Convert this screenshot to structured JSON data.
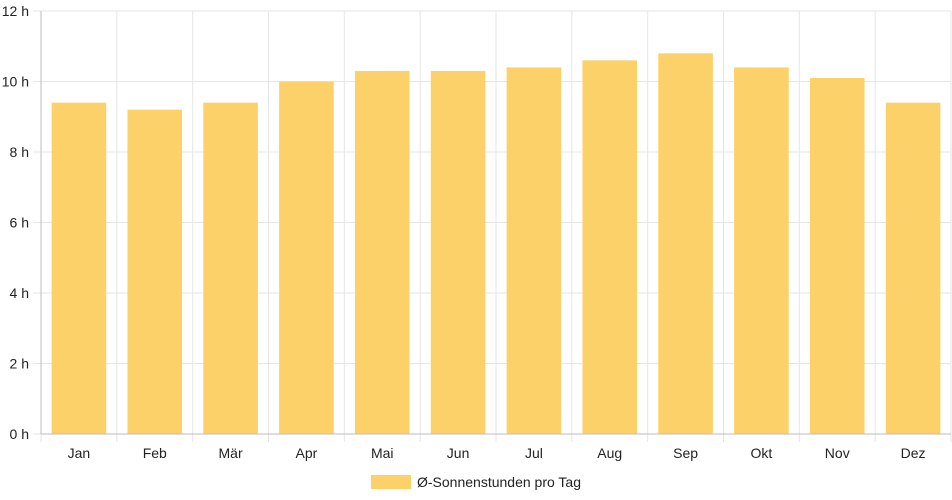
{
  "chart_data": {
    "type": "bar",
    "categories": [
      "Jan",
      "Feb",
      "Mär",
      "Apr",
      "Mai",
      "Jun",
      "Jul",
      "Aug",
      "Sep",
      "Okt",
      "Nov",
      "Dez"
    ],
    "series": [
      {
        "name": "Ø-Sonnenstunden pro Tag",
        "values": [
          9.4,
          9.2,
          9.4,
          10.0,
          10.3,
          10.3,
          10.4,
          10.6,
          10.8,
          10.4,
          10.1,
          9.4
        ]
      }
    ],
    "yticks": [
      "0 h",
      "2 h",
      "4 h",
      "6 h",
      "8 h",
      "10 h",
      "12 h"
    ],
    "ylim": [
      0,
      12
    ],
    "ytick_step": 2,
    "grid": true,
    "legend_position": "bottom-center",
    "colors": {
      "bar": "#fdd169",
      "grid": "#e6e6e6",
      "axis": "#bdbdbd"
    }
  }
}
